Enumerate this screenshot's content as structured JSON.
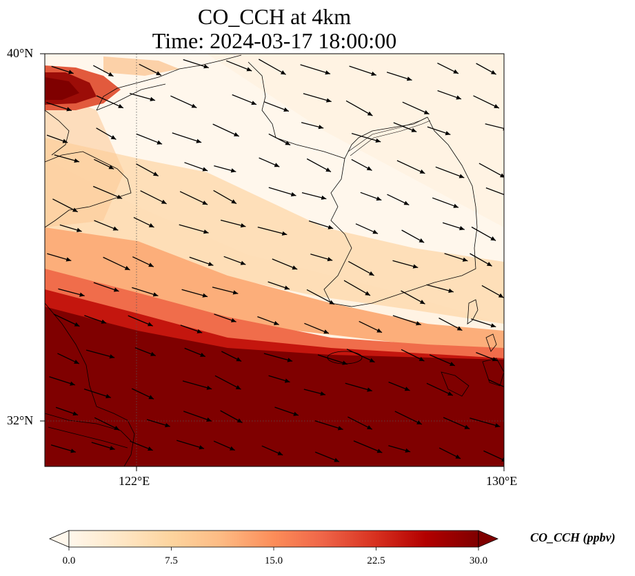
{
  "title": {
    "line1": "CO_CCH at 4km",
    "line2": "Time: 2024-03-17 18:00:00"
  },
  "map": {
    "extent": {
      "lon": [
        120,
        130
      ],
      "lat": [
        31,
        40
      ]
    },
    "lat_labels": [
      "40°N",
      "32°N"
    ],
    "lon_labels": [
      "122°E",
      "130°E"
    ],
    "gridlines": {
      "lon": [
        122
      ],
      "lat": [
        32
      ],
      "style": "dotted"
    },
    "wind_direction_deg": "toward east-southeast"
  },
  "colorbar": {
    "label": "CO_CCH (ppbv)",
    "colormap": "OrRd",
    "min": 0.0,
    "max": 30.0,
    "ticks": [
      "0.0",
      "7.5",
      "15.0",
      "22.5",
      "30.0"
    ],
    "extend": "both"
  },
  "colors": {
    "low": "#fff7ec",
    "mid": "#fdbb84",
    "high": "#7f0000"
  }
}
